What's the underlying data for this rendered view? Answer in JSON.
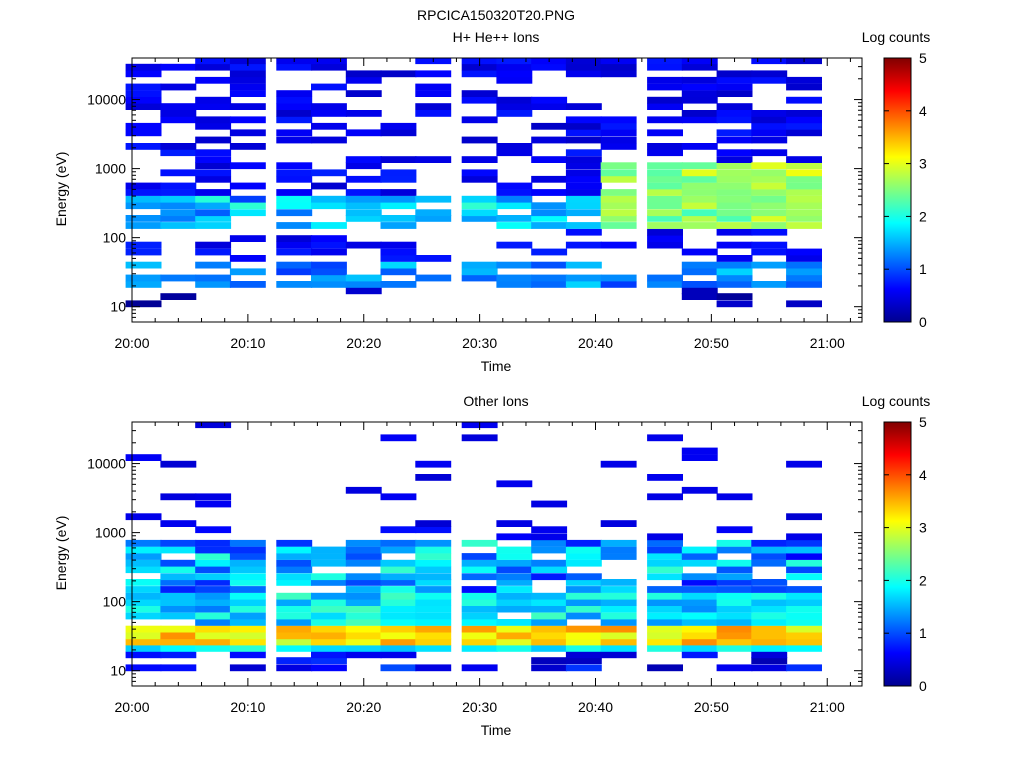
{
  "figure_title": "RPCICA150320T20.PNG",
  "colorbar": {
    "label": "Log counts",
    "ticks": [
      "0",
      "1",
      "2",
      "3",
      "4",
      "5"
    ],
    "range": [
      0,
      5
    ]
  },
  "chart_data": [
    {
      "type": "heatmap",
      "title": "H+ He++ Ions",
      "xlabel": "Time",
      "ylabel": "Energy (eV)",
      "x_ticks": [
        "20:00",
        "20:10",
        "20:20",
        "20:30",
        "20:40",
        "20:50",
        "21:00"
      ],
      "y_ticks": [
        "10",
        "100",
        "1000",
        "10000"
      ],
      "y_scale": "log",
      "ylim": [
        6,
        40000
      ],
      "xlim": [
        "20:00",
        "21:03"
      ],
      "time_bins": [
        "20:01",
        "20:04",
        "20:07",
        "20:10",
        "20:14",
        "20:17",
        "20:20",
        "20:23",
        "20:26",
        "20:30",
        "20:33",
        "20:36",
        "20:39",
        "20:42",
        "20:46",
        "20:49",
        "20:52",
        "20:55",
        "20:58"
      ],
      "energy_bins_eV": [
        11,
        14,
        17,
        21,
        26,
        32,
        40,
        50,
        62,
        78,
        97,
        120,
        150,
        190,
        230,
        290,
        360,
        450,
        560,
        700,
        870,
        1100,
        1350,
        1700,
        2100,
        2600,
        3300,
        4100,
        5100,
        6300,
        7900,
        9800,
        12200,
        15200,
        19000,
        23600,
        29400,
        36600
      ],
      "colorscale": "log counts 0-5 (blue-cyan-yellow-red)",
      "profile_notes": "sparse 0-1 background at all energies; intensity band ~150-1100 eV reaching ~2.5-3 log counts after 20:40; low energy 20-40 eV ~1"
    },
    {
      "type": "heatmap",
      "title": "Other Ions",
      "xlabel": "Time",
      "ylabel": "Energy (eV)",
      "x_ticks": [
        "20:00",
        "20:10",
        "20:20",
        "20:30",
        "20:40",
        "20:50",
        "21:00"
      ],
      "y_ticks": [
        "10",
        "100",
        "1000",
        "10000"
      ],
      "y_scale": "log",
      "ylim": [
        6,
        40000
      ],
      "xlim": [
        "20:00",
        "21:03"
      ],
      "time_bins": [
        "20:01",
        "20:04",
        "20:07",
        "20:10",
        "20:14",
        "20:17",
        "20:20",
        "20:23",
        "20:26",
        "20:30",
        "20:33",
        "20:36",
        "20:39",
        "20:42",
        "20:46",
        "20:49",
        "20:52",
        "20:55",
        "20:58"
      ],
      "energy_bins_eV": [
        11,
        14,
        17,
        21,
        26,
        32,
        40,
        50,
        62,
        78,
        97,
        120,
        150,
        190,
        230,
        290,
        360,
        450,
        560,
        700,
        870,
        1100,
        1350,
        1700,
        2100,
        2600,
        3300,
        4100,
        5100,
        6300,
        7900,
        9800,
        12200,
        15200,
        19000,
        23600,
        29400,
        36600
      ],
      "colorscale": "log counts 0-5 (blue-cyan-yellow-red)",
      "profile_notes": "strong band 25-40 eV ~3-3.8 log counts; 40-700 eV ~1-2; sparse above 1000 eV"
    }
  ]
}
